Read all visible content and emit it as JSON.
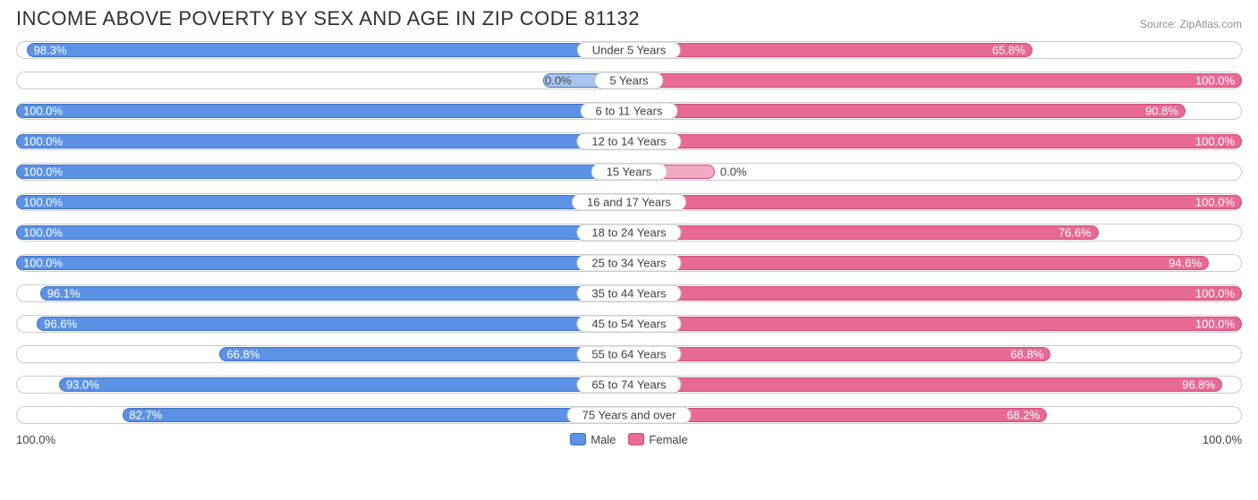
{
  "title": "INCOME ABOVE POVERTY BY SEX AND AGE IN ZIP CODE 81132",
  "source": "Source: ZipAtlas.com",
  "colors": {
    "male_fill": "#5b92e5",
    "male_border": "#3f72c0",
    "male_light_fill": "#aac6ef",
    "female_fill": "#e86a93",
    "female_border": "#d04c78",
    "female_light_fill": "#f4a9c2",
    "track_border": "#cccccc",
    "background": "#ffffff",
    "text": "#404040"
  },
  "axis": {
    "left": "100.0%",
    "right": "100.0%"
  },
  "legend": {
    "male": "Male",
    "female": "Female"
  },
  "min_bar_pct": 14,
  "rows": [
    {
      "category": "Under 5 Years",
      "male": 98.3,
      "male_label": "98.3%",
      "female": 65.8,
      "female_label": "65.8%"
    },
    {
      "category": "5 Years",
      "male": 0.0,
      "male_label": "0.0%",
      "female": 100.0,
      "female_label": "100.0%",
      "male_light": true
    },
    {
      "category": "6 to 11 Years",
      "male": 100.0,
      "male_label": "100.0%",
      "female": 90.8,
      "female_label": "90.8%"
    },
    {
      "category": "12 to 14 Years",
      "male": 100.0,
      "male_label": "100.0%",
      "female": 100.0,
      "female_label": "100.0%"
    },
    {
      "category": "15 Years",
      "male": 100.0,
      "male_label": "100.0%",
      "female": 0.0,
      "female_label": "0.0%",
      "female_light": true
    },
    {
      "category": "16 and 17 Years",
      "male": 100.0,
      "male_label": "100.0%",
      "female": 100.0,
      "female_label": "100.0%"
    },
    {
      "category": "18 to 24 Years",
      "male": 100.0,
      "male_label": "100.0%",
      "female": 76.6,
      "female_label": "76.6%"
    },
    {
      "category": "25 to 34 Years",
      "male": 100.0,
      "male_label": "100.0%",
      "female": 94.6,
      "female_label": "94.6%"
    },
    {
      "category": "35 to 44 Years",
      "male": 96.1,
      "male_label": "96.1%",
      "female": 100.0,
      "female_label": "100.0%"
    },
    {
      "category": "45 to 54 Years",
      "male": 96.6,
      "male_label": "96.6%",
      "female": 100.0,
      "female_label": "100.0%"
    },
    {
      "category": "55 to 64 Years",
      "male": 66.8,
      "male_label": "66.8%",
      "female": 68.8,
      "female_label": "68.8%"
    },
    {
      "category": "65 to 74 Years",
      "male": 93.0,
      "male_label": "93.0%",
      "female": 96.8,
      "female_label": "96.8%"
    },
    {
      "category": "75 Years and over",
      "male": 82.7,
      "male_label": "82.7%",
      "female": 68.2,
      "female_label": "68.2%"
    }
  ]
}
